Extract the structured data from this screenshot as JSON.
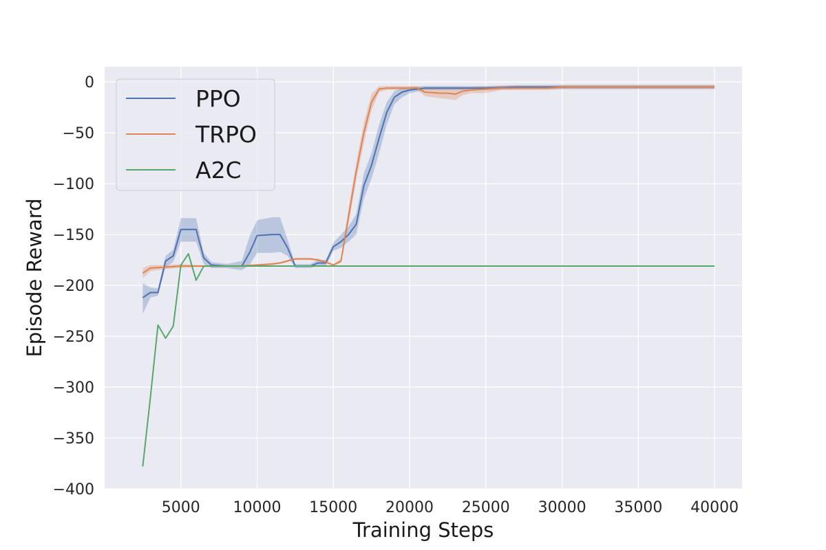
{
  "chart_data": {
    "type": "line",
    "title": "",
    "xlabel": "Training Steps",
    "ylabel": "Episode Reward",
    "xlim": [
      0,
      41800
    ],
    "ylim": [
      -400,
      15
    ],
    "xticks": [
      5000,
      10000,
      15000,
      20000,
      25000,
      30000,
      35000,
      40000
    ],
    "yticks": [
      0,
      -50,
      -100,
      -150,
      -200,
      -250,
      -300,
      -350,
      -400
    ],
    "xtick_labels": [
      "5000",
      "10000",
      "15000",
      "20000",
      "25000",
      "30000",
      "35000",
      "40000"
    ],
    "ytick_labels": [
      "0",
      "−50",
      "−100",
      "−150",
      "−200",
      "−250",
      "−300",
      "−350",
      "−400"
    ],
    "grid": true,
    "background": "#eaeaf2",
    "legend_position": "top-left",
    "series": [
      {
        "name": "PPO",
        "color": "#4c72b0",
        "x": [
          2500,
          3000,
          3500,
          4000,
          4500,
          5000,
          5500,
          6000,
          6500,
          7000,
          8000,
          9000,
          9500,
          10000,
          11000,
          11500,
          12000,
          12500,
          13000,
          13500,
          14000,
          14500,
          15000,
          15500,
          16000,
          16500,
          17000,
          17500,
          18000,
          18500,
          19000,
          19500,
          20000,
          21000,
          22000,
          23000,
          25000,
          27000,
          30000,
          33000,
          35000,
          37000,
          40000
        ],
        "y": [
          -212,
          -207,
          -207,
          -176,
          -171,
          -145,
          -145,
          -145,
          -173,
          -180,
          -181,
          -181,
          -168,
          -151,
          -150,
          -150,
          -163,
          -181,
          -181,
          -181,
          -178,
          -178,
          -162,
          -157,
          -150,
          -140,
          -102,
          -82,
          -55,
          -30,
          -15,
          -10,
          -8,
          -6,
          -6,
          -6,
          -6,
          -5,
          -5,
          -5,
          -5,
          -5,
          -5
        ],
        "band_lower": [
          -228,
          -212,
          -210,
          -182,
          -177,
          -157,
          -157,
          -157,
          -179,
          -183,
          -183,
          -185,
          -180,
          -168,
          -168,
          -167,
          -171,
          -183,
          -183,
          -183,
          -181,
          -181,
          -166,
          -163,
          -157,
          -150,
          -115,
          -95,
          -70,
          -42,
          -22,
          -15,
          -11,
          -8,
          -8,
          -8,
          -8,
          -7,
          -7,
          -7,
          -7,
          -7,
          -7
        ],
        "band_upper": [
          -198,
          -202,
          -203,
          -171,
          -165,
          -134,
          -134,
          -134,
          -168,
          -177,
          -179,
          -176,
          -152,
          -136,
          -133,
          -133,
          -155,
          -179,
          -179,
          -179,
          -175,
          -175,
          -158,
          -150,
          -142,
          -130,
          -90,
          -70,
          -42,
          -20,
          -9,
          -6,
          -5,
          -4,
          -4,
          -4,
          -4,
          -3,
          -3,
          -3,
          -3,
          -3,
          -3
        ]
      },
      {
        "name": "TRPO",
        "color": "#dd8452",
        "x": [
          2500,
          3000,
          4000,
          5000,
          6000,
          7000,
          8000,
          9000,
          10000,
          11000,
          11500,
          12000,
          12500,
          13000,
          13500,
          14000,
          14500,
          15000,
          15500,
          16000,
          16500,
          17000,
          17500,
          18000,
          18500,
          19000,
          20000,
          20500,
          21000,
          22000,
          22500,
          23000,
          23500,
          24000,
          25000,
          26000,
          27000,
          28000,
          29000,
          30000,
          32000,
          35000,
          37000,
          40000
        ],
        "y": [
          -188,
          -183,
          -182,
          -181,
          -181,
          -181,
          -181,
          -181,
          -180,
          -179,
          -178,
          -176,
          -174,
          -174,
          -174,
          -175,
          -177,
          -180,
          -176,
          -132,
          -88,
          -50,
          -20,
          -7,
          -6,
          -6,
          -6,
          -6,
          -10,
          -11,
          -11,
          -12,
          -9,
          -8,
          -7,
          -6,
          -6,
          -6,
          -6,
          -5,
          -5,
          -5,
          -5,
          -5
        ],
        "band_lower": [
          -193,
          -186,
          -184,
          -183,
          -182,
          -182,
          -182,
          -182,
          -181,
          -180,
          -179,
          -177,
          -175,
          -175,
          -175,
          -176,
          -178,
          -181,
          -178,
          -140,
          -97,
          -60,
          -28,
          -10,
          -8,
          -8,
          -8,
          -8,
          -14,
          -16,
          -17,
          -18,
          -13,
          -11,
          -11,
          -8,
          -8,
          -8,
          -8,
          -7,
          -7,
          -7,
          -7,
          -7
        ],
        "band_upper": [
          -183,
          -180,
          -180,
          -179,
          -180,
          -180,
          -180,
          -180,
          -179,
          -178,
          -177,
          -175,
          -173,
          -173,
          -173,
          -174,
          -176,
          -179,
          -174,
          -124,
          -79,
          -40,
          -12,
          -4,
          -4,
          -4,
          -4,
          -4,
          -6,
          -6,
          -6,
          -6,
          -5,
          -5,
          -4,
          -4,
          -4,
          -4,
          -4,
          -3,
          -3,
          -3,
          -3,
          -3
        ]
      },
      {
        "name": "A2C",
        "color": "#55a868",
        "x": [
          2500,
          3000,
          3500,
          4000,
          4500,
          5000,
          5500,
          6000,
          6500,
          7000,
          8000,
          10000,
          15000,
          20000,
          25000,
          30000,
          35000,
          40000
        ],
        "y": [
          -378,
          -310,
          -239,
          -252,
          -240,
          -180,
          -169,
          -195,
          -181,
          -181,
          -181,
          -181,
          -181,
          -181,
          -181,
          -181,
          -181,
          -181
        ]
      }
    ]
  }
}
